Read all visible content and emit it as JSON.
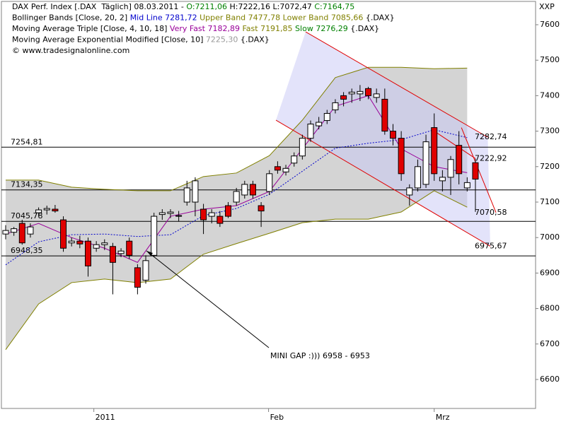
{
  "chart_data": {
    "type": "candlestick",
    "header": [
      [
        {
          "text": "DAX Perf. Index [.DAX  Täglich] 08.03.2011 - ",
          "color": "#000000"
        },
        {
          "text": "O:7211,06",
          "color": "#008000"
        },
        {
          "text": " H:7222,16 L:7072,47 ",
          "color": "#000000"
        },
        {
          "text": "C:7164,75",
          "color": "#008000"
        }
      ],
      [
        {
          "text": "Bollinger Bands [Close, 20, 2] ",
          "color": "#000000"
        },
        {
          "text": "Mid Line 7281,72",
          "color": "#0000cc"
        },
        {
          "text": " Upper Band 7477,78 Lower Band 7085,66",
          "color": "#808000"
        },
        {
          "text": " {.DAX}",
          "color": "#000000"
        }
      ],
      [
        {
          "text": "Moving Average Triple [Close, 4, 10, 18] ",
          "color": "#000000"
        },
        {
          "text": "Very Fast 7182,89",
          "color": "#990099"
        },
        {
          "text": " Fast 7191,85",
          "color": "#808000"
        },
        {
          "text": " Slow 7276,29",
          "color": "#008000"
        },
        {
          "text": " {.DAX}",
          "color": "#000000"
        }
      ],
      [
        {
          "text": "Moving Average Exponential Modified [Close, 10] ",
          "color": "#000000"
        },
        {
          "text": "7225,30",
          "color": "#999999"
        },
        {
          "text": " {.DAX}",
          "color": "#000000"
        }
      ],
      [
        {
          "text": "© www.tradesignalonline.com",
          "color": "#000000"
        }
      ]
    ],
    "y_axis_label": "XXP",
    "x": [
      0,
      1,
      2,
      3,
      4,
      5,
      6,
      7,
      8,
      9,
      10,
      11,
      12,
      13,
      14,
      15,
      16,
      17,
      18,
      19,
      20,
      21,
      22,
      23,
      24,
      25,
      26,
      27,
      28,
      29,
      30,
      31,
      32,
      33,
      34,
      35,
      36,
      37,
      38,
      39,
      40,
      41,
      42,
      43,
      44,
      45,
      46,
      47,
      48,
      49,
      50,
      51,
      52,
      53,
      54,
      55,
      56,
      57
    ],
    "open": [
      7010,
      7015,
      7040,
      7010,
      7070,
      7078,
      7080,
      7050,
      6985,
      6990,
      6990,
      6970,
      6980,
      6975,
      6955,
      6990,
      6915,
      6880,
      6950,
      7065,
      7068,
      7060,
      7100,
      7100,
      7080,
      7060,
      7060,
      7090,
      7100,
      7120,
      7150,
      7090,
      7130,
      7200,
      7185,
      7210,
      7230,
      7280,
      7315,
      7330,
      7360,
      7400,
      7405,
      7405,
      7420,
      7395,
      7390,
      7300,
      7280,
      7120,
      7140,
      7150,
      7310,
      7160,
      7170,
      7260,
      7140,
      7211.06
    ],
    "high": [
      7035,
      7030,
      7050,
      7040,
      7085,
      7090,
      7092,
      7060,
      7000,
      7005,
      7000,
      6990,
      6995,
      6985,
      6970,
      7000,
      6925,
      6950,
      7070,
      7080,
      7080,
      7075,
      7160,
      7170,
      7095,
      7080,
      7075,
      7100,
      7140,
      7160,
      7160,
      7100,
      7190,
      7215,
      7205,
      7240,
      7290,
      7330,
      7340,
      7360,
      7390,
      7410,
      7420,
      7430,
      7425,
      7420,
      7420,
      7320,
      7300,
      7150,
      7220,
      7290,
      7350,
      7190,
      7230,
      7300,
      7170,
      7222.16
    ],
    "low": [
      6995,
      7005,
      6980,
      7000,
      7060,
      7065,
      7070,
      6960,
      6975,
      6970,
      6890,
      6960,
      6965,
      6840,
      6945,
      6940,
      6840,
      6870,
      6945,
      7050,
      7055,
      7045,
      7090,
      7060,
      7010,
      7040,
      7030,
      7055,
      7090,
      7110,
      7110,
      7030,
      7120,
      7180,
      7175,
      7200,
      7220,
      7270,
      7305,
      7320,
      7350,
      7370,
      7380,
      7385,
      7390,
      7380,
      7290,
      7260,
      7160,
      7090,
      7130,
      7140,
      7160,
      7130,
      7120,
      7150,
      7130,
      7072.47
    ],
    "close": [
      7020,
      7025,
      6985,
      7030,
      7078,
      7082,
      7075,
      6970,
      6990,
      6982,
      6920,
      6980,
      6985,
      6930,
      6962,
      6950,
      6860,
      6935,
      7060,
      7070,
      7072,
      7062,
      7140,
      7160,
      7050,
      7070,
      7040,
      7060,
      7130,
      7150,
      7120,
      7075,
      7180,
      7190,
      7195,
      7230,
      7280,
      7320,
      7325,
      7350,
      7380,
      7390,
      7410,
      7412,
      7400,
      7405,
      7300,
      7280,
      7180,
      7140,
      7200,
      7270,
      7180,
      7170,
      7220,
      7180,
      7155,
      7164.75
    ],
    "up_color": "#ffffff",
    "down_color": "#e00000",
    "band_color": "#d4d4d4",
    "series": [
      {
        "role": "upper",
        "color": "#808000",
        "x": [
          0,
          4,
          8,
          12,
          16,
          20,
          24,
          28,
          32,
          36,
          40,
          44,
          48,
          52,
          56
        ],
        "values": [
          7162,
          7162,
          7142,
          7136,
          7132,
          7132,
          7172,
          7182,
          7231,
          7331,
          7451,
          7480,
          7480,
          7476,
          7477.78
        ]
      },
      {
        "role": "lower",
        "color": "#808000",
        "x": [
          0,
          4,
          8,
          12,
          16,
          20,
          24,
          28,
          32,
          36,
          40,
          44,
          48,
          52,
          56
        ],
        "values": [
          6684,
          6813,
          6873,
          6883,
          6873,
          6883,
          6953,
          6983,
          7012,
          7042,
          7052,
          7052,
          7072,
          7132,
          7085.66
        ]
      },
      {
        "role": "mid",
        "color": "#0000cc",
        "x": [
          0,
          4,
          8,
          12,
          16,
          20,
          24,
          28,
          32,
          36,
          40,
          44,
          48,
          52,
          56
        ],
        "values": [
          6923,
          6988,
          7008,
          7010,
          7003,
          7008,
          7062,
          7082,
          7122,
          7187,
          7252,
          7266,
          7276,
          7304,
          7281.72
        ]
      },
      {
        "role": "line",
        "color": "#990099",
        "x": [
          0,
          4,
          8,
          12,
          16,
          20,
          24,
          28,
          32,
          36,
          40,
          44,
          48,
          52,
          56
        ],
        "values": [
          7010,
          7040,
          7000,
          6970,
          6930,
          7060,
          7080,
          7090,
          7130,
          7250,
          7370,
          7400,
          7250,
          7200,
          7182.89
        ]
      }
    ],
    "levels": [
      {
        "value": 7254.81,
        "label": "7254,81"
      },
      {
        "value": 7134.35,
        "label": "7134,35"
      },
      {
        "value": 7045.78,
        "label": "7045,78"
      },
      {
        "value": 6948.35,
        "label": "6948,35"
      }
    ],
    "trend_lines": [
      {
        "x": [
          36.4,
          58.5
        ],
        "y": [
          7580,
          7282.74
        ],
        "color": "#e00000",
        "end_label": "7282,74"
      },
      {
        "x": [
          52,
          57
        ],
        "y": [
          7300,
          7222.92
        ],
        "color": "#e00000",
        "end_label": "7222,92"
      },
      {
        "x": [
          55.3,
          59.5
        ],
        "y": [
          7310,
          7070.58
        ],
        "color": "#e00000",
        "end_label": "7070,58"
      },
      {
        "x": [
          32.8,
          58.8
        ],
        "y": [
          7331,
          6975.67
        ],
        "color": "#e00000",
        "end_label": "6975,67"
      }
    ],
    "annotation": "MINI GAP  :))) 6958 - 6953",
    "xlim": [
      -0.515,
      64.3
    ],
    "xticks": [
      {
        "value": 10.7,
        "label": "2011"
      },
      {
        "value": 31.9,
        "label": "Feb"
      },
      {
        "value": 52.0,
        "label": "Mrz"
      }
    ],
    "ylim": [
      6518.3,
      7665.7
    ],
    "yticks": [
      6600,
      6700,
      6800,
      6900,
      7000,
      7100,
      7200,
      7300,
      7400,
      7500,
      7600
    ]
  }
}
